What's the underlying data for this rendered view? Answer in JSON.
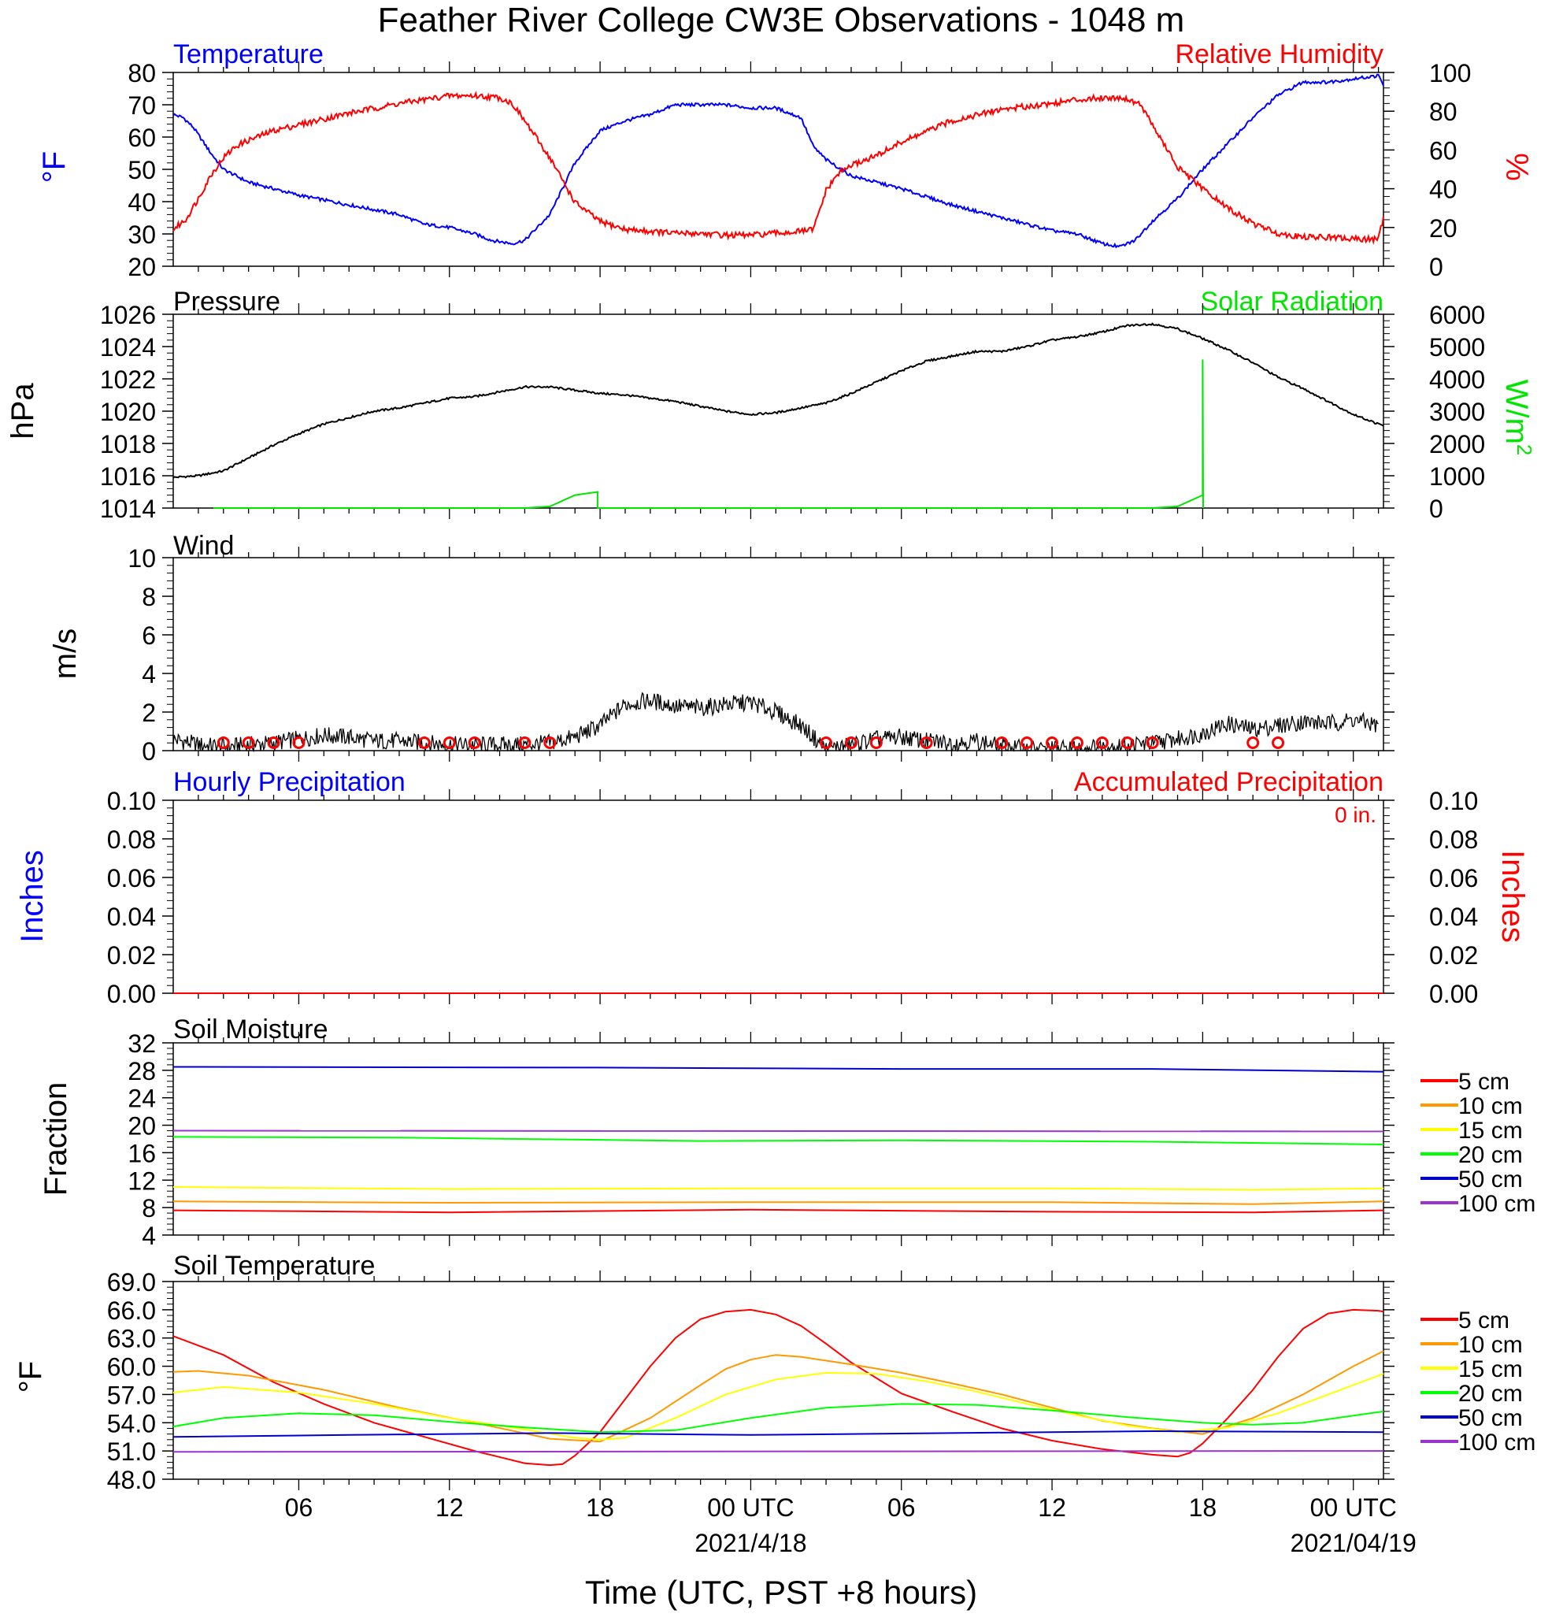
{
  "title": "Feather River College CW3E Observations - 1048 m",
  "x_axis": {
    "label": "Time (UTC, PST +8 hours)",
    "tick_labels": [
      {
        "h": 6,
        "label": "06"
      },
      {
        "h": 12,
        "label": "12"
      },
      {
        "h": 18,
        "label": "18"
      },
      {
        "h": 24,
        "label": "00 UTC"
      },
      {
        "h": 30,
        "label": "06"
      },
      {
        "h": 36,
        "label": "12"
      },
      {
        "h": 42,
        "label": "18"
      },
      {
        "h": 48,
        "label": "00 UTC"
      }
    ],
    "dates": [
      {
        "h": 24,
        "label": "2021/4/18"
      },
      {
        "h": 48,
        "label": "2021/04/19"
      }
    ],
    "range_hours_from_2021_04_17_00UTC": [
      1,
      49.2
    ]
  },
  "colors": {
    "blue": "#0000ff",
    "red": "#ff0000",
    "green": "#00e600",
    "black": "#000000",
    "orange": "#ff9900",
    "yellow": "#ffff00",
    "dgreen": "#00ff00",
    "dblue": "#0000cc",
    "purple": "#9933cc"
  },
  "chart_data": [
    {
      "type": "line",
      "left_title": "Temperature",
      "right_title": "Relative Humidity",
      "ylabel_left": "oF",
      "ylabel_right": "%",
      "ylim_left": [
        20,
        80
      ],
      "ylim_right": [
        0,
        100
      ],
      "yticks_left": [
        "20",
        "30",
        "40",
        "50",
        "60",
        "70",
        "80"
      ],
      "yticks_right": [
        "0",
        "20",
        "40",
        "60",
        "80",
        "100"
      ],
      "series": [
        {
          "name": "Temperature",
          "axis": "left",
          "x": [
            1,
            1.4,
            1.8,
            2.5,
            3,
            3.5,
            4,
            5,
            6,
            8,
            10,
            11,
            12,
            13,
            13.7,
            14.5,
            15,
            16,
            17,
            18,
            19,
            20,
            21,
            22,
            23,
            24,
            25,
            26,
            26.5,
            27,
            28,
            29,
            30,
            32,
            34,
            36,
            37,
            38,
            38.7,
            39.3,
            40,
            41,
            42,
            43,
            44,
            45,
            46,
            47,
            48,
            49,
            49.2
          ],
          "y": [
            67,
            66,
            63,
            55,
            50,
            48,
            46,
            44,
            42,
            39,
            36,
            33,
            32,
            30,
            28,
            27,
            28,
            36,
            52,
            62,
            65,
            67,
            70,
            70,
            70,
            69,
            69,
            66,
            57,
            53,
            48,
            46,
            44,
            39,
            35,
            31,
            30,
            27,
            26,
            28,
            34,
            41,
            50,
            58,
            66,
            73,
            77,
            77,
            78,
            79,
            76
          ]
        },
        {
          "name": "Relative Humidity",
          "axis": "right",
          "x": [
            1,
            1.5,
            2,
            2.5,
            3,
            3.5,
            4,
            5,
            6,
            8,
            10,
            11,
            12,
            13,
            14,
            14.5,
            15,
            16,
            17,
            18,
            19,
            20,
            21,
            22,
            23,
            24,
            25,
            26,
            26.5,
            27,
            27.5,
            28,
            29,
            30,
            32,
            34,
            36,
            37,
            38,
            38.8,
            39.5,
            40,
            41,
            42,
            43,
            44,
            45,
            46,
            47,
            48,
            49,
            49.2
          ],
          "y": [
            19,
            24,
            35,
            47,
            56,
            62,
            65,
            70,
            73,
            79,
            84,
            86,
            88,
            88,
            87,
            84,
            75,
            56,
            33,
            23,
            19,
            18,
            17,
            17,
            16,
            16,
            17,
            18,
            19,
            39,
            48,
            52,
            57,
            64,
            75,
            81,
            84,
            86,
            87,
            87,
            84,
            73,
            51,
            40,
            30,
            22,
            17,
            15,
            15,
            14,
            14,
            25
          ]
        }
      ]
    },
    {
      "type": "line",
      "left_title": "Pressure",
      "right_title": "Solar Radiation",
      "ylabel_left": "hPa",
      "ylabel_right": "W/m2",
      "ylim_left": [
        1014,
        1026
      ],
      "ylim_right": [
        0,
        6000
      ],
      "yticks_left": [
        "1014",
        "1016",
        "1018",
        "1020",
        "1022",
        "1024",
        "1026"
      ],
      "yticks_right": [
        "0",
        "1000",
        "2000",
        "3000",
        "4000",
        "5000",
        "6000"
      ],
      "series": [
        {
          "name": "Pressure",
          "axis": "left",
          "x": [
            1,
            2,
            3,
            4,
            5,
            6,
            7,
            8,
            9,
            10,
            11,
            12,
            13,
            14,
            15,
            16,
            17,
            18,
            19,
            20,
            21,
            22,
            23,
            24,
            25,
            26,
            27,
            28,
            29,
            30,
            31,
            32,
            33,
            34,
            35,
            36,
            37,
            38,
            39,
            40,
            41,
            42,
            43,
            44,
            45,
            46,
            47,
            48,
            49,
            49.2
          ],
          "y": [
            1015.9,
            1016.0,
            1016.3,
            1017.1,
            1017.9,
            1018.6,
            1019.2,
            1019.6,
            1020.0,
            1020.2,
            1020.5,
            1020.8,
            1020.9,
            1021.2,
            1021.5,
            1021.5,
            1021.3,
            1021.1,
            1021.0,
            1020.8,
            1020.6,
            1020.3,
            1020.0,
            1019.8,
            1019.9,
            1020.2,
            1020.5,
            1021.1,
            1021.8,
            1022.5,
            1023.1,
            1023.4,
            1023.7,
            1023.7,
            1024.0,
            1024.4,
            1024.6,
            1024.9,
            1025.3,
            1025.4,
            1025.1,
            1024.5,
            1023.8,
            1023.0,
            1022.1,
            1021.4,
            1020.6,
            1019.8,
            1019.2,
            1019.1
          ]
        },
        {
          "name": "Solar Radiation",
          "axis": "right",
          "x": [
            2.6,
            15,
            16,
            17,
            17.9,
            17.9,
            27,
            40,
            41,
            42,
            42,
            42,
            42.02
          ],
          "y": [
            0,
            0,
            50,
            400,
            500,
            0,
            0,
            0,
            50,
            400,
            500,
            4600,
            0
          ]
        }
      ]
    },
    {
      "type": "line",
      "left_title": "Wind",
      "ylabel_left": "m/s",
      "ylim_left": [
        0,
        10
      ],
      "yticks_left": [
        "0",
        "2",
        "4",
        "6",
        "8",
        "10"
      ],
      "series": [
        {
          "name": "Wind",
          "axis": "left",
          "x": [
            1,
            2,
            3,
            4,
            5,
            6,
            7,
            8,
            9,
            10,
            11,
            12,
            13,
            14,
            15,
            16,
            17,
            18,
            19,
            20,
            21,
            22,
            23,
            24,
            25,
            26,
            27,
            28,
            29,
            30,
            31,
            32,
            33,
            34,
            35,
            36,
            37,
            38,
            39,
            40,
            41,
            42,
            43,
            44,
            45,
            46,
            47,
            48,
            49
          ],
          "y": [
            0.6,
            0.3,
            0.2,
            0.3,
            0.4,
            0.6,
            0.8,
            0.7,
            0.5,
            0.5,
            0.4,
            0.3,
            0.3,
            0.3,
            0.3,
            0.4,
            0.7,
            1.3,
            2.4,
            2.6,
            2.3,
            2.2,
            2.4,
            2.5,
            2.0,
            1.3,
            0.1,
            0.3,
            0.6,
            0.7,
            0.5,
            0.4,
            0.5,
            0.2,
            0.1,
            0.1,
            0.1,
            0.2,
            0.3,
            0.4,
            0.6,
            0.9,
            1.4,
            1.1,
            1.3,
            1.5,
            1.4,
            1.6,
            1.3
          ]
        }
      ]
    },
    {
      "type": "line",
      "left_title": "Hourly Precipitation",
      "right_title": "Accumulated Precipitation",
      "annotation": "0 in.",
      "ylabel_left": "Inches",
      "ylabel_right": "Inches",
      "ylim_left": [
        0,
        0.1
      ],
      "ylim_right": [
        0,
        0.1
      ],
      "yticks_left": [
        "0.00",
        "0.02",
        "0.04",
        "0.06",
        "0.08",
        "0.10"
      ],
      "yticks_right": [
        "0.00",
        "0.02",
        "0.04",
        "0.06",
        "0.08",
        "0.10"
      ],
      "series": [
        {
          "name": "Hourly Precipitation",
          "axis": "left",
          "x": [
            1,
            49.2
          ],
          "y": [
            0,
            0
          ]
        },
        {
          "name": "Accumulated Precipitation",
          "axis": "right",
          "x": [
            1,
            49.2
          ],
          "y": [
            0,
            0
          ]
        }
      ]
    },
    {
      "type": "line",
      "left_title": "Soil Moisture",
      "ylabel_left": "Fraction",
      "ylim_left": [
        4,
        32
      ],
      "yticks_left": [
        "4",
        "8",
        "12",
        "16",
        "20",
        "24",
        "28",
        "32"
      ],
      "series": [
        {
          "name": "5 cm",
          "x": [
            1,
            12,
            24,
            36,
            44,
            49.2
          ],
          "y": [
            7.6,
            7.3,
            7.7,
            7.4,
            7.3,
            7.6
          ]
        },
        {
          "name": "10 cm",
          "x": [
            1,
            12,
            24,
            36,
            44,
            49.2
          ],
          "y": [
            8.9,
            8.7,
            8.8,
            8.8,
            8.5,
            8.9
          ]
        },
        {
          "name": "15 cm",
          "x": [
            1,
            12,
            24,
            36,
            44,
            49.2
          ],
          "y": [
            11.0,
            10.7,
            10.8,
            10.8,
            10.6,
            10.8
          ]
        },
        {
          "name": "20 cm",
          "x": [
            1,
            10,
            22,
            30,
            40,
            49.2
          ],
          "y": [
            18.3,
            18.2,
            17.7,
            17.8,
            17.6,
            17.2
          ]
        },
        {
          "name": "50 cm",
          "x": [
            1,
            18,
            30,
            40,
            49.2
          ],
          "y": [
            28.5,
            28.4,
            28.2,
            28.2,
            27.8
          ]
        },
        {
          "name": "100 cm",
          "x": [
            1,
            49.2
          ],
          "y": [
            19.2,
            19.1
          ]
        }
      ],
      "legend": [
        "5 cm",
        "10 cm",
        "15 cm",
        "20 cm",
        "50 cm",
        "100 cm"
      ]
    },
    {
      "type": "line",
      "left_title": "Soil Temperature",
      "ylabel_left": "oF",
      "ylim_left": [
        48,
        69
      ],
      "yticks_left": [
        "48.0",
        "51.0",
        "54.0",
        "57.0",
        "60.0",
        "63.0",
        "66.0",
        "69.0"
      ],
      "series": [
        {
          "name": "5 cm",
          "x": [
            1,
            3,
            5,
            7,
            9,
            11,
            13,
            15,
            16,
            16.5,
            17,
            18,
            19,
            20,
            21,
            22,
            23,
            24,
            25,
            26,
            27,
            28,
            30,
            32,
            34,
            36,
            38,
            40,
            41,
            41.5,
            42,
            43,
            44,
            45,
            46,
            47,
            48,
            49,
            49.2
          ],
          "y": [
            63.2,
            61.2,
            58.3,
            56.0,
            54.0,
            52.5,
            51.0,
            49.7,
            49.5,
            49.6,
            50.5,
            53.0,
            56.5,
            60.0,
            63.0,
            65.0,
            65.8,
            66.0,
            65.5,
            64.3,
            62.4,
            60.4,
            57.1,
            55.2,
            53.4,
            52.1,
            51.2,
            50.6,
            50.4,
            50.8,
            51.8,
            54.5,
            57.5,
            61.0,
            64.0,
            65.6,
            66.0,
            65.9,
            65.8
          ]
        },
        {
          "name": "10 cm",
          "x": [
            1,
            2,
            4,
            7,
            10,
            13,
            16,
            18,
            20,
            22,
            23,
            24,
            25,
            26,
            28,
            30,
            32,
            34,
            36,
            38,
            40,
            42,
            44,
            46,
            48,
            49.2
          ],
          "y": [
            59.4,
            59.5,
            59.0,
            57.5,
            55.6,
            54.0,
            52.3,
            52.0,
            54.5,
            58.0,
            59.7,
            60.7,
            61.2,
            61.0,
            60.2,
            59.3,
            58.2,
            57.0,
            55.6,
            54.2,
            53.4,
            52.8,
            54.5,
            57.0,
            60.0,
            61.6
          ]
        },
        {
          "name": "15 cm",
          "x": [
            1,
            3,
            6,
            9,
            12,
            15,
            17,
            18,
            19,
            21,
            23,
            25,
            27,
            29,
            31,
            33,
            35,
            37,
            39,
            41,
            43,
            45,
            47,
            49.2
          ],
          "y": [
            57.2,
            57.8,
            57.2,
            56.0,
            54.5,
            53.3,
            52.4,
            52.2,
            52.4,
            54.5,
            57.0,
            58.6,
            59.3,
            59.2,
            58.4,
            57.3,
            56.0,
            54.8,
            53.7,
            53.0,
            53.5,
            55.0,
            57.0,
            59.2
          ]
        },
        {
          "name": "20 cm",
          "x": [
            1,
            3,
            6,
            9,
            12,
            15,
            18,
            21,
            24,
            27,
            30,
            33,
            36,
            39,
            42,
            44,
            46,
            49.2
          ],
          "y": [
            53.6,
            54.5,
            55.0,
            54.8,
            54.1,
            53.5,
            53.0,
            53.2,
            54.5,
            55.6,
            56.0,
            55.9,
            55.3,
            54.6,
            54.0,
            53.8,
            54.0,
            55.2
          ]
        },
        {
          "name": "50 cm",
          "x": [
            1,
            8,
            16,
            24,
            32,
            40,
            49.2
          ],
          "y": [
            52.5,
            52.7,
            52.9,
            52.7,
            52.9,
            53.1,
            53.0
          ]
        },
        {
          "name": "100 cm",
          "x": [
            1,
            49.2
          ],
          "y": [
            50.9,
            51.0
          ]
        }
      ],
      "legend": [
        "5 cm",
        "10 cm",
        "15 cm",
        "20 cm",
        "50 cm",
        "100 cm"
      ]
    }
  ],
  "wind_rings_hours": [
    3,
    4,
    5,
    6,
    11,
    12,
    13,
    15,
    16,
    27,
    28,
    29,
    31,
    34,
    35,
    36,
    37,
    38,
    39,
    40,
    44,
    45
  ]
}
